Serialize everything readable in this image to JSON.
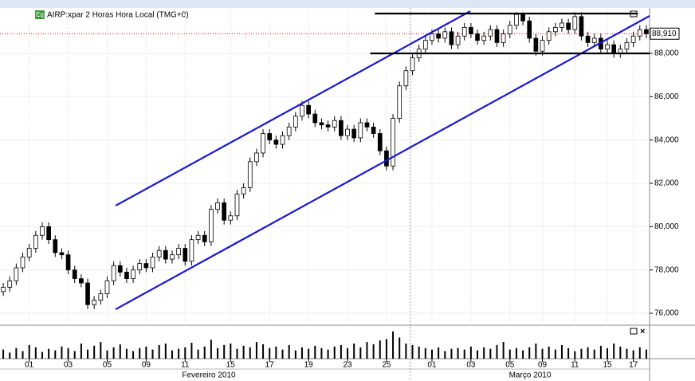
{
  "chart_data": {
    "type": "candlestick",
    "icon": "Eq",
    "title": "AIRP:xpar 2 Horas Hora Local (TMG+0)",
    "categories": [
      null,
      null,
      null,
      null,
      "01",
      null,
      null,
      null,
      null,
      null,
      "03",
      null,
      null,
      null,
      null,
      null,
      "05",
      null,
      null,
      null,
      null,
      null,
      "09",
      null,
      null,
      null,
      null,
      null,
      "11",
      null,
      null,
      null,
      null,
      null,
      null,
      "15",
      null,
      null,
      null,
      null,
      null,
      "17",
      null,
      null,
      null,
      null,
      null,
      "19",
      null,
      null,
      null,
      null,
      null,
      "23",
      null,
      null,
      null,
      null,
      null,
      "25",
      null,
      null,
      null,
      null,
      null,
      null,
      "01",
      null,
      null,
      null,
      null,
      null,
      "03",
      null,
      null,
      null,
      null,
      null,
      "05",
      null,
      null,
      null,
      null,
      "09",
      null,
      null,
      null,
      null,
      "11",
      null,
      null,
      null,
      null,
      "15",
      null,
      null,
      null,
      "17",
      null,
      null
    ],
    "months": [
      "Fevereiro 2010",
      "Março 2010"
    ],
    "open": [
      77000,
      77200,
      77500,
      78100,
      78600,
      79000,
      79600,
      80000,
      79400,
      78800,
      78700,
      78000,
      77600,
      77400,
      76400,
      76600,
      76900,
      77500,
      78200,
      77900,
      77600,
      78000,
      78300,
      78100,
      78600,
      78900,
      78500,
      78700,
      79000,
      78400,
      79400,
      79600,
      79300,
      80800,
      81100,
      80300,
      80500,
      81500,
      81800,
      83000,
      83400,
      84300,
      84000,
      83800,
      84200,
      84600,
      85100,
      85600,
      85200,
      84800,
      84700,
      84600,
      84900,
      84200,
      84500,
      84100,
      84800,
      84600,
      84300,
      83500,
      82800,
      85000,
      86500,
      87200,
      87800,
      88200,
      88600,
      88900,
      88700,
      89000,
      88400,
      88800,
      89200,
      88900,
      88600,
      88800,
      89100,
      88500,
      88900,
      89300,
      89800,
      89500,
      88700,
      88100,
      88600,
      89000,
      89200,
      89400,
      89100,
      89700,
      88800,
      88500,
      88700,
      88200,
      88400,
      88000,
      88200,
      88500,
      88800,
      89100
    ],
    "high": [
      77400,
      77700,
      78300,
      78800,
      79200,
      79800,
      80200,
      80200,
      79600,
      79000,
      78900,
      78200,
      77800,
      77600,
      76800,
      77100,
      77700,
      78400,
      78400,
      78100,
      78200,
      78500,
      78500,
      78800,
      79100,
      79100,
      78900,
      79200,
      79200,
      79600,
      79800,
      79800,
      81000,
      81300,
      81300,
      80700,
      81700,
      82000,
      83200,
      83600,
      84500,
      84500,
      84200,
      84400,
      84800,
      85300,
      85800,
      85800,
      85400,
      85000,
      84900,
      85100,
      85100,
      84700,
      84700,
      85000,
      85000,
      84800,
      84500,
      83700,
      85200,
      86700,
      87400,
      88000,
      88400,
      88800,
      89100,
      89100,
      89200,
      89200,
      89000,
      89400,
      89400,
      89100,
      89000,
      89300,
      89300,
      89100,
      89500,
      89900,
      89900,
      89700,
      88900,
      88800,
      89200,
      89400,
      89600,
      89600,
      89900,
      89900,
      89000,
      88900,
      88900,
      88600,
      88600,
      88400,
      88700,
      89000,
      89300,
      89300
    ],
    "low": [
      76800,
      77000,
      77300,
      77900,
      78400,
      78800,
      79400,
      79200,
      78600,
      78500,
      77800,
      77400,
      77200,
      76200,
      76200,
      76400,
      76700,
      77300,
      77700,
      77400,
      77400,
      77800,
      77900,
      77900,
      78400,
      78300,
      78300,
      78500,
      78200,
      78200,
      79200,
      79100,
      79100,
      80600,
      80100,
      80100,
      80300,
      81300,
      81600,
      82800,
      83200,
      83800,
      83600,
      83600,
      84000,
      84400,
      84900,
      85000,
      84600,
      84500,
      84400,
      84400,
      84000,
      84000,
      83900,
      83900,
      84400,
      84100,
      83300,
      82600,
      82600,
      84800,
      86300,
      87000,
      87600,
      88000,
      88400,
      88500,
      88500,
      88200,
      88200,
      88600,
      88700,
      88400,
      88400,
      88600,
      88300,
      88300,
      88700,
      89100,
      89300,
      88500,
      87900,
      87900,
      88400,
      88800,
      89000,
      88900,
      88900,
      88600,
      88300,
      88300,
      88000,
      88000,
      87800,
      87800,
      88000,
      88300,
      88600,
      88700
    ],
    "close": [
      77200,
      77500,
      78100,
      78600,
      79000,
      79600,
      80000,
      79400,
      78800,
      78700,
      78000,
      77600,
      77400,
      76400,
      76600,
      76900,
      77500,
      78200,
      77900,
      77600,
      78000,
      78300,
      78100,
      78600,
      78900,
      78500,
      78700,
      79000,
      78400,
      79400,
      79600,
      79300,
      80800,
      81100,
      80300,
      80500,
      81500,
      81800,
      83000,
      83400,
      84300,
      84000,
      83800,
      84200,
      84600,
      85100,
      85600,
      85200,
      84800,
      84700,
      84600,
      84900,
      84200,
      84500,
      84100,
      84800,
      84600,
      84300,
      83500,
      82800,
      85000,
      86500,
      87200,
      87800,
      88200,
      88600,
      88900,
      88700,
      89000,
      88400,
      88800,
      89200,
      88900,
      88600,
      88800,
      89100,
      88500,
      88900,
      89300,
      89800,
      89500,
      88700,
      88100,
      88600,
      89000,
      89200,
      89400,
      89100,
      89700,
      88800,
      88500,
      88700,
      88200,
      88400,
      88000,
      88200,
      88500,
      88800,
      89100,
      88910
    ],
    "volume": [
      12,
      8,
      14,
      10,
      18,
      15,
      9,
      13,
      11,
      16,
      14,
      10,
      20,
      12,
      17,
      22,
      11,
      15,
      19,
      13,
      10,
      14,
      16,
      12,
      18,
      20,
      11,
      13,
      15,
      21,
      12,
      16,
      25,
      14,
      18,
      20,
      13,
      17,
      15,
      22,
      19,
      14,
      16,
      12,
      18,
      11,
      15,
      13,
      17,
      14,
      12,
      16,
      18,
      14,
      20,
      15,
      22,
      19,
      24,
      26,
      36,
      28,
      20,
      18,
      16,
      14,
      12,
      15,
      10,
      13,
      14,
      12,
      16,
      11,
      15,
      13,
      18,
      22,
      12,
      14,
      11,
      15,
      20,
      13,
      16,
      12,
      18,
      14,
      10,
      13,
      15,
      12,
      17,
      14,
      20,
      16,
      13,
      11,
      15,
      12
    ],
    "vlim": [
      0,
      40
    ],
    "ylim": [
      75450,
      89950
    ],
    "yticks": [
      {
        "value": 76000,
        "label": "76,000"
      },
      {
        "value": 78000,
        "label": "78,000"
      },
      {
        "value": 80000,
        "label": "80,000"
      },
      {
        "value": 82000,
        "label": "82,000"
      },
      {
        "value": 84000,
        "label": "84,000"
      },
      {
        "value": 86000,
        "label": "86,000"
      },
      {
        "value": 88000,
        "label": "88,000"
      }
    ],
    "last": {
      "value": 88910,
      "label": "88,910",
      "color": "#d01010"
    },
    "up_color": "#ffffff",
    "down_color": "#000000",
    "trend_lines": [
      {
        "x": [
          17.3,
          71.9
        ],
        "y": [
          80970,
          89950
        ],
        "color": "#1a1acc"
      },
      {
        "x": [
          17.3,
          99.5
        ],
        "y": [
          76185,
          89730
        ],
        "color": "#1a1acc"
      },
      {
        "x": [
          57.2,
          97.7
        ],
        "y": [
          89840,
          89840
        ],
        "color": "#000000"
      },
      {
        "x": [
          56.5,
          99.5
        ],
        "y": [
          88000,
          88000
        ],
        "color": "#000000"
      }
    ]
  }
}
